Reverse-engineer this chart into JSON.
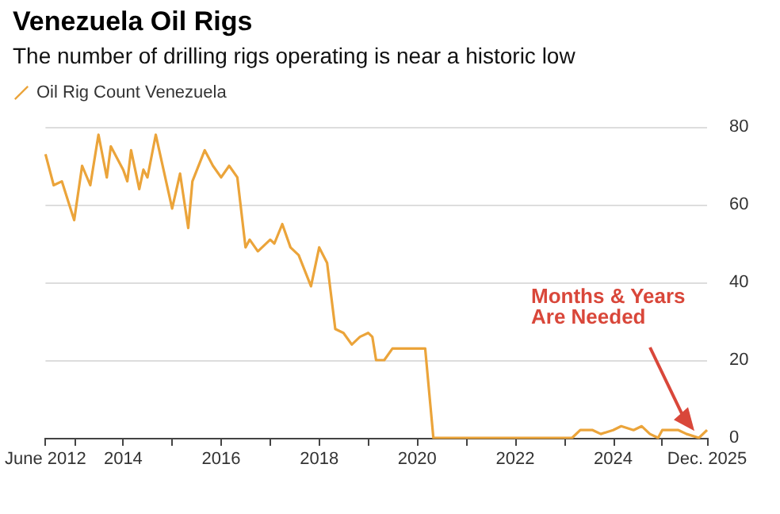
{
  "chart_data": {
    "type": "line",
    "title": "Venezuela Oil Rigs",
    "subtitle": "The number of drilling rigs operating is near a historic low",
    "x": [
      "2012-06",
      "2012-08",
      "2012-10",
      "2013-01",
      "2013-03",
      "2013-05",
      "2013-07",
      "2013-09",
      "2013-10",
      "2014-01",
      "2014-02",
      "2014-03",
      "2014-05",
      "2014-06",
      "2014-07",
      "2014-09",
      "2015-01",
      "2015-03",
      "2015-05",
      "2015-06",
      "2015-09",
      "2015-11",
      "2016-01",
      "2016-03",
      "2016-05",
      "2016-07",
      "2016-08",
      "2016-10",
      "2017-01",
      "2017-02",
      "2017-04",
      "2017-06",
      "2017-08",
      "2017-11",
      "2018-01",
      "2018-03",
      "2018-05",
      "2018-07",
      "2018-09",
      "2018-11",
      "2019-01",
      "2019-02",
      "2019-03",
      "2019-05",
      "2019-07",
      "2020-03",
      "2020-05",
      "2023-03",
      "2023-05",
      "2023-08",
      "2023-10",
      "2024-01",
      "2024-03",
      "2024-06",
      "2024-08",
      "2024-10",
      "2024-12",
      "2025-01",
      "2025-03",
      "2025-05",
      "2025-07",
      "2025-10",
      "2025-12"
    ],
    "series": [
      {
        "name": "Oil Rig Count Venezuela",
        "color": "#eba43a",
        "values": [
          73,
          65,
          66,
          56,
          70,
          65,
          78,
          67,
          75,
          69,
          66,
          74,
          64,
          69,
          67,
          78,
          59,
          68,
          54,
          66,
          74,
          70,
          67,
          70,
          67,
          49,
          51,
          48,
          51,
          50,
          55,
          49,
          47,
          39,
          49,
          45,
          28,
          27,
          24,
          26,
          27,
          26,
          20,
          20,
          23,
          23,
          0,
          0,
          2,
          2,
          1,
          2,
          3,
          2,
          3,
          1,
          0,
          2,
          2,
          2,
          1,
          0,
          2
        ]
      }
    ],
    "xlim": [
      "2012-06",
      "2025-12"
    ],
    "xticks": [
      {
        "value": "2012-06",
        "label": "June 2012"
      },
      {
        "value": "2013",
        "label": null
      },
      {
        "value": "2014",
        "label": "2014"
      },
      {
        "value": "2015",
        "label": null
      },
      {
        "value": "2016",
        "label": "2016"
      },
      {
        "value": "2017",
        "label": null
      },
      {
        "value": "2018",
        "label": "2018"
      },
      {
        "value": "2019",
        "label": null
      },
      {
        "value": "2020",
        "label": "2020"
      },
      {
        "value": "2021",
        "label": null
      },
      {
        "value": "2022",
        "label": "2022"
      },
      {
        "value": "2023",
        "label": null
      },
      {
        "value": "2024",
        "label": "2024"
      },
      {
        "value": "2025",
        "label": null
      },
      {
        "value": "2025-12",
        "label": "Dec. 2025"
      }
    ],
    "ylim": [
      0,
      80
    ],
    "yticks": [
      0,
      20,
      40,
      60,
      80
    ],
    "grid": "y",
    "legend": "top left",
    "marker": "none",
    "line_style": "solid",
    "annotations": [
      "Months & Years Are Needed"
    ]
  }
}
